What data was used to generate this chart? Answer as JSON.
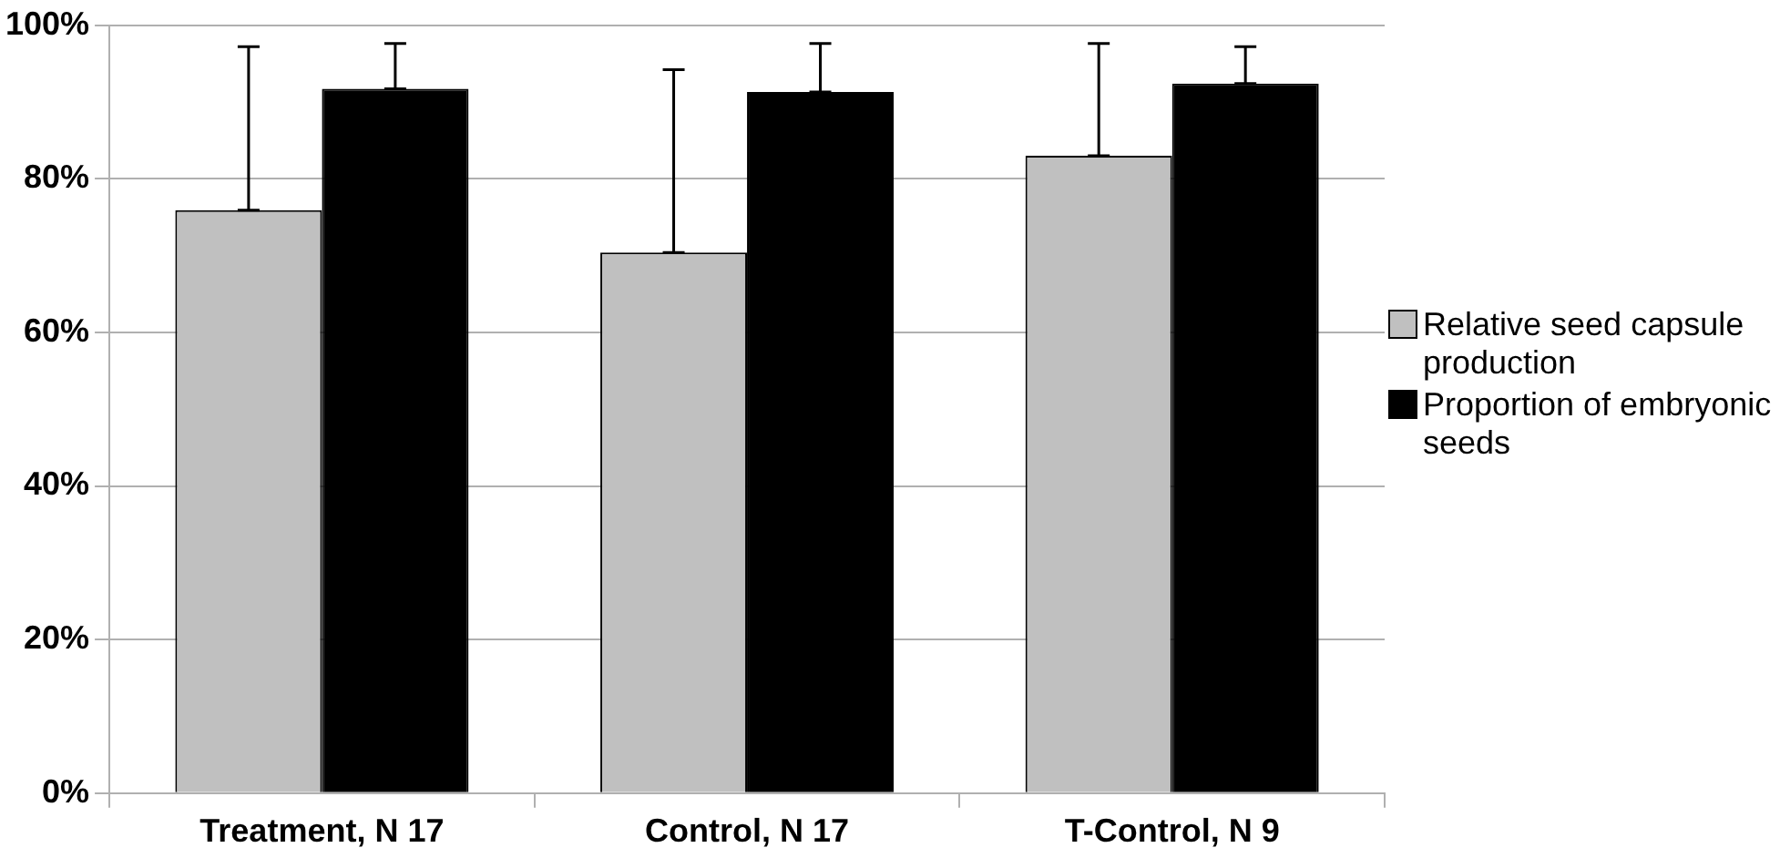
{
  "chart_data": {
    "type": "bar",
    "categories": [
      "Treatment, N 17",
      "Control, N 17",
      "T-Control, N 9"
    ],
    "series": [
      {
        "name": "Relative seed capsule production",
        "color": "#c0c0c0",
        "values": [
          75.9,
          70.4,
          83.0
        ],
        "errors": [
          [
            75.9,
            97.2
          ],
          [
            70.4,
            94.2
          ],
          [
            83.0,
            97.6
          ]
        ]
      },
      {
        "name": "Proportion of embryonic seeds",
        "color": "#000000",
        "values": [
          91.7,
          91.3,
          92.4
        ],
        "errors": [
          [
            91.7,
            97.6
          ],
          [
            91.3,
            97.6
          ],
          [
            92.4,
            97.2
          ]
        ]
      }
    ],
    "ylim": [
      0,
      100
    ],
    "yticks": [
      {
        "value": 0,
        "label": "0%"
      },
      {
        "value": 20,
        "label": "20%"
      },
      {
        "value": 40,
        "label": "40%"
      },
      {
        "value": 60,
        "label": "60%"
      },
      {
        "value": 80,
        "label": "80%"
      },
      {
        "value": 100,
        "label": "100%"
      }
    ],
    "grid": "y",
    "legend": "right"
  }
}
